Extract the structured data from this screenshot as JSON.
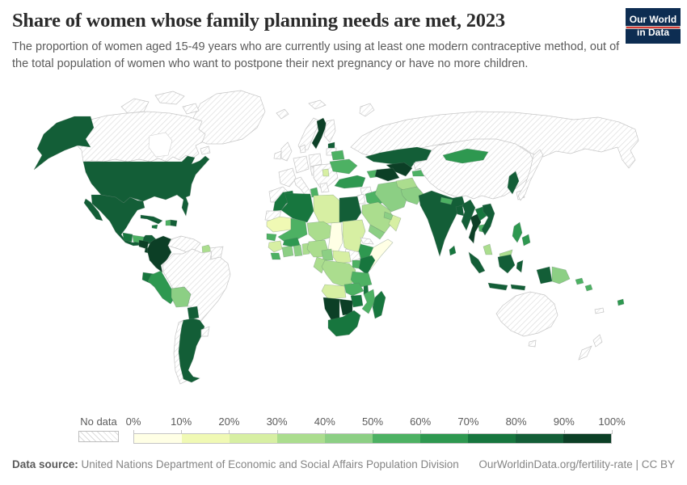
{
  "header": {
    "title": "Share of women whose family planning needs are met, 2023",
    "logo_line1": "Our World",
    "logo_line2": "in Data",
    "logo_bg": "#0d2d52",
    "logo_accent": "#d73a33"
  },
  "subtitle": "The proportion of women aged 15-49 years who are currently using at least one modern contraceptive method, out of the total population of women who want to postpone their next pregnancy or have no more children.",
  "legend": {
    "no_data_label": "No data",
    "tick_labels": [
      "0%",
      "10%",
      "20%",
      "30%",
      "40%",
      "50%",
      "60%",
      "70%",
      "80%",
      "90%",
      "100%"
    ],
    "colors": [
      "#ffffe5",
      "#f0f9b4",
      "#d7efa3",
      "#abdd8e",
      "#8ccf84",
      "#4db163",
      "#2e9850",
      "#17763e",
      "#135e37",
      "#0c3f26"
    ]
  },
  "footer": {
    "source_label": "Data source:",
    "source_text": " United Nations Department of Economic and Social Affairs Population Division",
    "credit": "OurWorldinData.org/fertility-rate | CC BY"
  },
  "chart_data": {
    "type": "heatmap",
    "subtype": "choropleth-world-map",
    "title": "Share of women whose family planning needs are met, 2023",
    "unit": "%",
    "legend_position": "bottom",
    "bin_ranges": [
      "0-10%",
      "10-20%",
      "20-30%",
      "30-40%",
      "40-50%",
      "50-60%",
      "60-70%",
      "70-80%",
      "80-90%",
      "90-100%"
    ],
    "no_data_value": "nd",
    "regions": {
      "united_states": 8,
      "canada": "nd",
      "greenland": "nd",
      "mexico": 8,
      "guatemala": 7,
      "honduras": 5,
      "nicaragua": 9,
      "costa_rica": 9,
      "panama": 6,
      "cuba": 8,
      "jamaica": 7,
      "haiti": 5,
      "dominican_republic": 8,
      "colombia": 9,
      "venezuela": "nd",
      "guyana": 3,
      "suriname_guiana": "nd",
      "ecuador": 7,
      "peru": 6,
      "bolivia": 4,
      "brazil": "nd",
      "paraguay": 8,
      "argentina": 8,
      "chile": "nd",
      "uruguay": "nd",
      "iceland": "nd",
      "svalbard": "nd",
      "united_kingdom": "nd",
      "ireland": "nd",
      "denmark": "nd",
      "norway": "nd",
      "sweden": 9,
      "finland": "nd",
      "estonia": 8,
      "latvia_lithuania": "nd",
      "spain_portugal": "nd",
      "france": "nd",
      "germany": "nd",
      "poland": "nd",
      "czechia_hungary": "nd",
      "italy": "nd",
      "southeast_europe": "nd",
      "serbia": 2,
      "greece": "nd",
      "belarus": 5,
      "ukraine": 5,
      "russia": "nd",
      "turkey": 6,
      "georgia_azerbaijan": 5,
      "syria": "nd",
      "israel_jordan": "nd",
      "iraq": 5,
      "iran": 4,
      "saudi_arabia": 3,
      "yemen": 4,
      "oman": 2,
      "uae_qatar": 4,
      "kazakhstan": 8,
      "uzbekistan": 9,
      "turkmenistan": 9,
      "kyrgyzstan": 5,
      "tajikistan": 5,
      "afghanistan": 3,
      "pakistan": 4,
      "china": "nd",
      "mongolia": 6,
      "north_korea": 8,
      "south_korea": "nd",
      "japan": "nd",
      "india": 8,
      "nepal": 5,
      "bangladesh": 8,
      "sri_lanka": 7,
      "myanmar": 8,
      "thailand": 9,
      "laos": 7,
      "cambodia": 5,
      "vietnam": 8,
      "malaysia": 3,
      "malaysia_borneo": 3,
      "indonesia": 8,
      "philippines": 6,
      "papua_new_guinea": 4,
      "solomon_islands": 5,
      "fiji": 6,
      "new_caledonia": "nd",
      "australia": "nd",
      "new_zealand": "nd",
      "morocco": 7,
      "western_sahara": "nd",
      "algeria": 7,
      "tunisia": 5,
      "libya": 2,
      "egypt": 8,
      "mauritania": 1,
      "mali": 5,
      "senegal": 5,
      "guinea": 2,
      "sierra_leone": 5,
      "cote_divoire": 4,
      "ghana": 4,
      "togo_benin": 3,
      "burkina_faso": 6,
      "niger": 3,
      "nigeria": 3,
      "chad": 0,
      "sudan": 2,
      "eritrea": "nd",
      "ethiopia": 6,
      "somalia": 0,
      "south_sudan": "nd",
      "kenya": 7,
      "uganda": 5,
      "drc": 3,
      "congo_gabon": 3,
      "cameroon": 4,
      "central_african_republic": 2,
      "tanzania": 5,
      "angola": 2,
      "zambia": 5,
      "malawi": 7,
      "mozambique": 5,
      "zimbabwe": 7,
      "botswana": 9,
      "namibia": 9,
      "south_africa": 7,
      "madagascar": 7
    }
  }
}
